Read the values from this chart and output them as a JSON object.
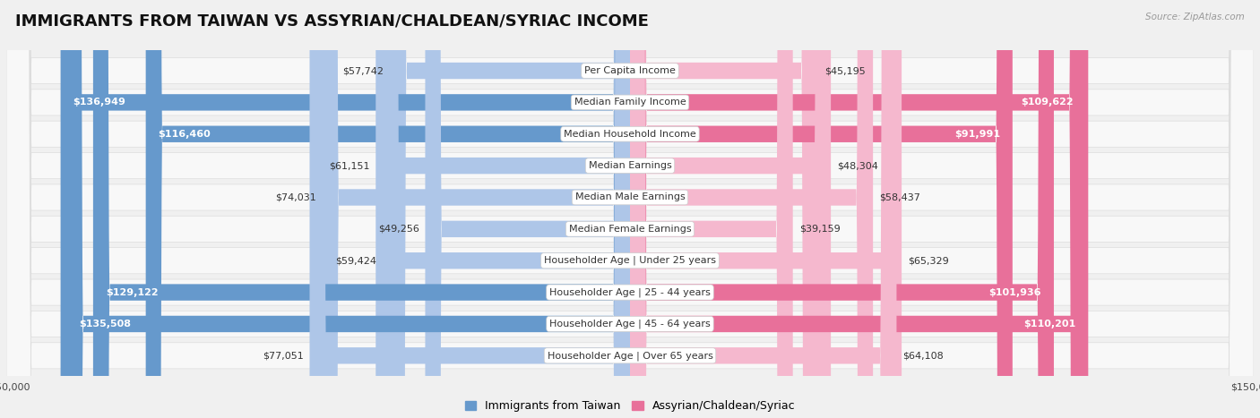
{
  "title": "IMMIGRANTS FROM TAIWAN VS ASSYRIAN/CHALDEAN/SYRIAC INCOME",
  "source": "Source: ZipAtlas.com",
  "categories": [
    "Per Capita Income",
    "Median Family Income",
    "Median Household Income",
    "Median Earnings",
    "Median Male Earnings",
    "Median Female Earnings",
    "Householder Age | Under 25 years",
    "Householder Age | 25 - 44 years",
    "Householder Age | 45 - 64 years",
    "Householder Age | Over 65 years"
  ],
  "taiwan_values": [
    57742,
    136949,
    116460,
    61151,
    74031,
    49256,
    59424,
    129122,
    135508,
    77051
  ],
  "assyrian_values": [
    45195,
    109622,
    91991,
    48304,
    58437,
    39159,
    65329,
    101936,
    110201,
    64108
  ],
  "taiwan_labels": [
    "$57,742",
    "$136,949",
    "$116,460",
    "$61,151",
    "$74,031",
    "$49,256",
    "$59,424",
    "$129,122",
    "$135,508",
    "$77,051"
  ],
  "assyrian_labels": [
    "$45,195",
    "$109,622",
    "$91,991",
    "$48,304",
    "$58,437",
    "$39,159",
    "$65,329",
    "$101,936",
    "$110,201",
    "$64,108"
  ],
  "taiwan_color_light": "#aec6e8",
  "taiwan_color_dark": "#6699cc",
  "assyrian_color_light": "#f5b8ce",
  "assyrian_color_dark": "#e8709a",
  "max_val": 150000,
  "bg_color": "#f0f0f0",
  "row_bg_color": "#f8f8f8",
  "row_border_color": "#dddddd",
  "title_fontsize": 13,
  "cat_fontsize": 8,
  "value_fontsize": 8,
  "legend_fontsize": 9,
  "axis_label_color": "#444444",
  "legend_label_taiwan": "Immigrants from Taiwan",
  "legend_label_assyrian": "Assyrian/Chaldean/Syriac",
  "large_threshold": 80000,
  "small_threshold": 0
}
